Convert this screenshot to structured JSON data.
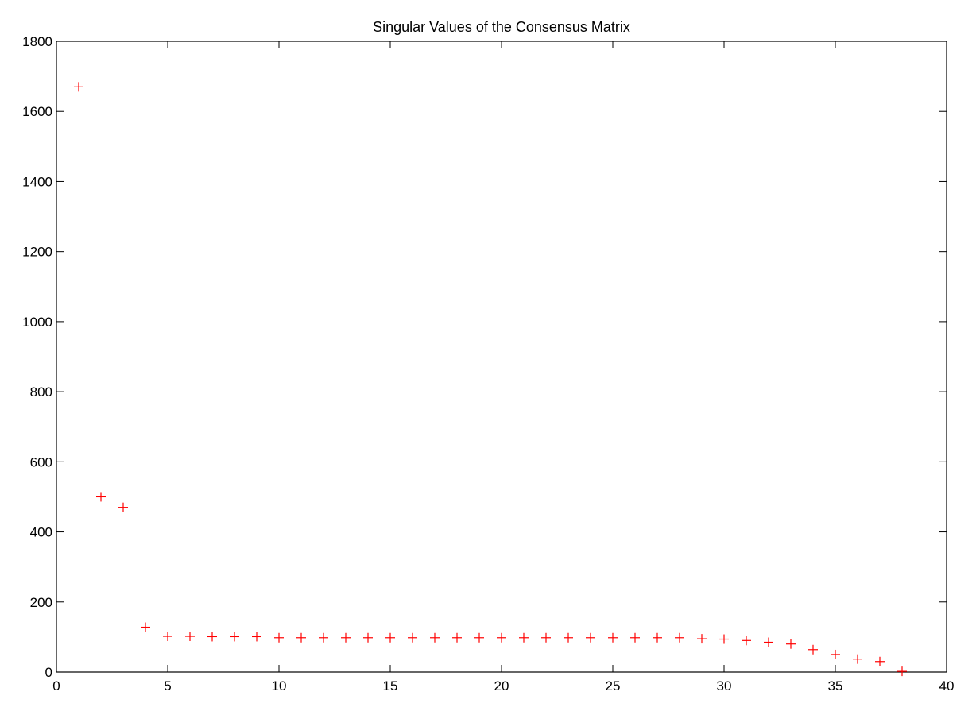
{
  "chart_data": {
    "type": "scatter",
    "title": "Singular Values of the Consensus Matrix",
    "xlabel": "",
    "ylabel": "",
    "xlim": [
      0,
      40
    ],
    "ylim": [
      0,
      1800
    ],
    "xticks": [
      "0",
      "5",
      "10",
      "15",
      "20",
      "25",
      "30",
      "35",
      "40"
    ],
    "yticks": [
      "0",
      "200",
      "400",
      "600",
      "800",
      "1000",
      "1200",
      "1400",
      "1600",
      "1800"
    ],
    "grid": false,
    "marker": "+",
    "marker_color": "#ff0000",
    "series": [
      {
        "x": [
          1,
          2,
          3,
          4,
          5,
          6,
          7,
          8,
          9,
          10,
          11,
          12,
          13,
          14,
          15,
          16,
          17,
          18,
          19,
          20,
          21,
          22,
          23,
          24,
          25,
          26,
          27,
          28,
          29,
          30,
          31,
          32,
          33,
          34,
          35,
          36,
          37,
          38
        ],
        "y": [
          1670,
          500,
          470,
          128,
          102,
          102,
          101,
          101,
          101,
          98,
          98,
          98,
          98,
          98,
          98,
          98,
          98,
          98,
          98,
          98,
          98,
          98,
          98,
          98,
          98,
          98,
          98,
          98,
          95,
          94,
          90,
          85,
          80,
          64,
          50,
          37,
          30,
          2
        ]
      }
    ]
  }
}
